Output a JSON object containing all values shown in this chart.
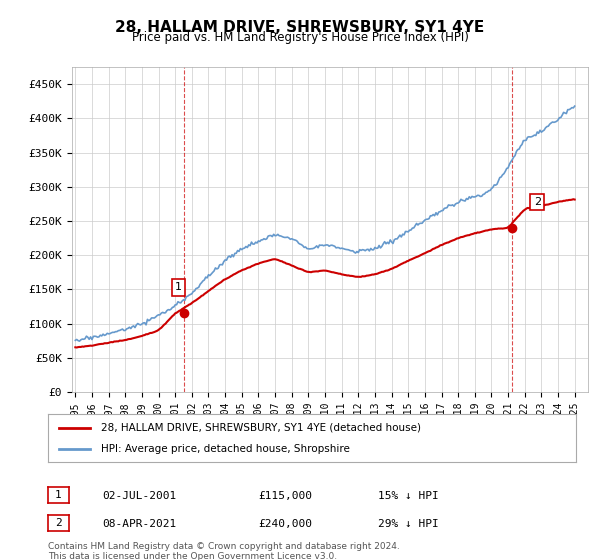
{
  "title": "28, HALLAM DRIVE, SHREWSBURY, SY1 4YE",
  "subtitle": "Price paid vs. HM Land Registry's House Price Index (HPI)",
  "ylabel_ticks": [
    "£0",
    "£50K",
    "£100K",
    "£150K",
    "£200K",
    "£250K",
    "£300K",
    "£350K",
    "£400K",
    "£450K"
  ],
  "ytick_values": [
    0,
    50000,
    100000,
    150000,
    200000,
    250000,
    300000,
    350000,
    400000,
    450000
  ],
  "ylim": [
    0,
    475000
  ],
  "xlim_start": 1995.0,
  "xlim_end": 2025.5,
  "hpi_color": "#6699cc",
  "price_color": "#cc0000",
  "marker1_year": 2001.5,
  "marker1_price": 115000,
  "marker2_year": 2021.25,
  "marker2_price": 240000,
  "annotation1_label": "1",
  "annotation2_label": "2",
  "legend_line1": "28, HALLAM DRIVE, SHREWSBURY, SY1 4YE (detached house)",
  "legend_line2": "HPI: Average price, detached house, Shropshire",
  "table_row1": [
    "1",
    "02-JUL-2001",
    "£115,000",
    "15% ↓ HPI"
  ],
  "table_row2": [
    "2",
    "08-APR-2021",
    "£240,000",
    "29% ↓ HPI"
  ],
  "footnote": "Contains HM Land Registry data © Crown copyright and database right 2024.\nThis data is licensed under the Open Government Licence v3.0.",
  "background_color": "#ffffff",
  "grid_color": "#cccccc"
}
